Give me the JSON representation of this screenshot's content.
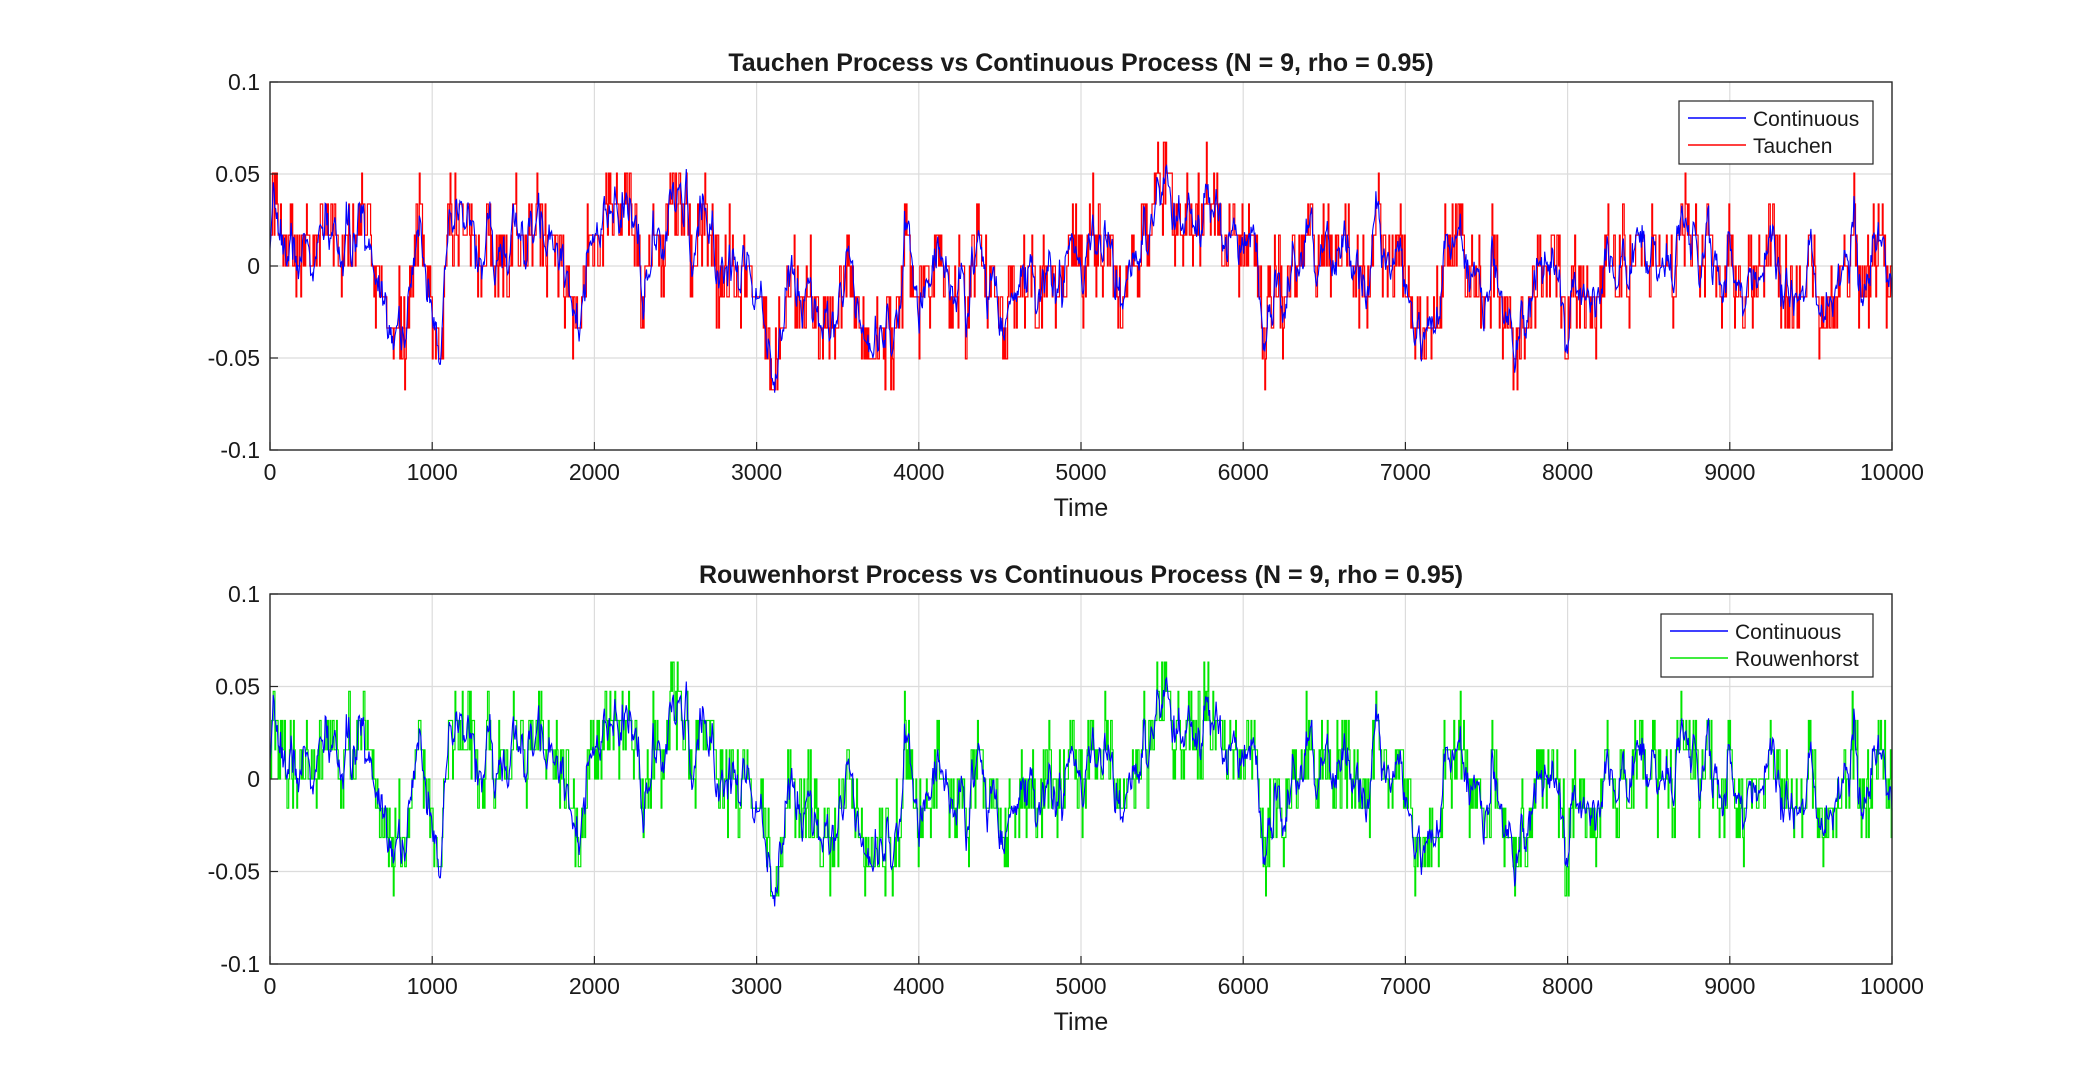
{
  "chart_data": [
    {
      "type": "line",
      "title": "Tauchen Process vs Continuous Process (N = 9, rho = 0.95)",
      "xlabel": "Time",
      "ylabel": "",
      "xlim": [
        0,
        10000
      ],
      "ylim": [
        -0.1,
        0.1
      ],
      "xticks": [
        0,
        1000,
        2000,
        3000,
        4000,
        5000,
        6000,
        7000,
        8000,
        9000,
        10000
      ],
      "xtick_labels": [
        "0",
        "1000",
        "2000",
        "3000",
        "4000",
        "5000",
        "6000",
        "7000",
        "8000",
        "9000",
        "10000"
      ],
      "yticks": [
        -0.1,
        -0.05,
        0,
        0.05,
        0.1
      ],
      "ytick_labels": [
        "-0.1",
        "-0.05",
        "0",
        "0.05",
        "0.1"
      ],
      "grid": true,
      "legend_position": "top-right",
      "series": [
        {
          "name": "Continuous",
          "color": "#0000ff",
          "style": "continuous",
          "x_range": [
            0,
            10000
          ],
          "approx_envelope": {
            "min": -0.083,
            "max": 0.068
          }
        },
        {
          "name": "Tauchen",
          "color": "#ff0000",
          "style": "step",
          "x_range": [
            0,
            10000
          ],
          "levels": [
            -0.0673,
            -0.0505,
            -0.0337,
            -0.0168,
            0,
            0.0168,
            0.0337,
            0.0505,
            0.0673
          ]
        }
      ]
    },
    {
      "type": "line",
      "title": "Rouwenhorst Process vs Continuous Process (N = 9, rho = 0.95)",
      "xlabel": "Time",
      "ylabel": "",
      "xlim": [
        0,
        10000
      ],
      "ylim": [
        -0.1,
        0.1
      ],
      "xticks": [
        0,
        1000,
        2000,
        3000,
        4000,
        5000,
        6000,
        7000,
        8000,
        9000,
        10000
      ],
      "xtick_labels": [
        "0",
        "1000",
        "2000",
        "3000",
        "4000",
        "5000",
        "6000",
        "7000",
        "8000",
        "9000",
        "10000"
      ],
      "yticks": [
        -0.1,
        -0.05,
        0,
        0.05,
        0.1
      ],
      "ytick_labels": [
        "-0.1",
        "-0.05",
        "0",
        "0.05",
        "0.1"
      ],
      "grid": true,
      "legend_position": "top-right",
      "series": [
        {
          "name": "Continuous",
          "color": "#0000ff",
          "style": "continuous",
          "x_range": [
            0,
            10000
          ],
          "approx_envelope": {
            "min": -0.083,
            "max": 0.068
          }
        },
        {
          "name": "Rouwenhorst",
          "color": "#00e600",
          "style": "step",
          "x_range": [
            0,
            10000
          ],
          "levels": [
            -0.0632,
            -0.0474,
            -0.0316,
            -0.0158,
            0,
            0.0158,
            0.0316,
            0.0474,
            0.0632
          ]
        }
      ]
    }
  ]
}
